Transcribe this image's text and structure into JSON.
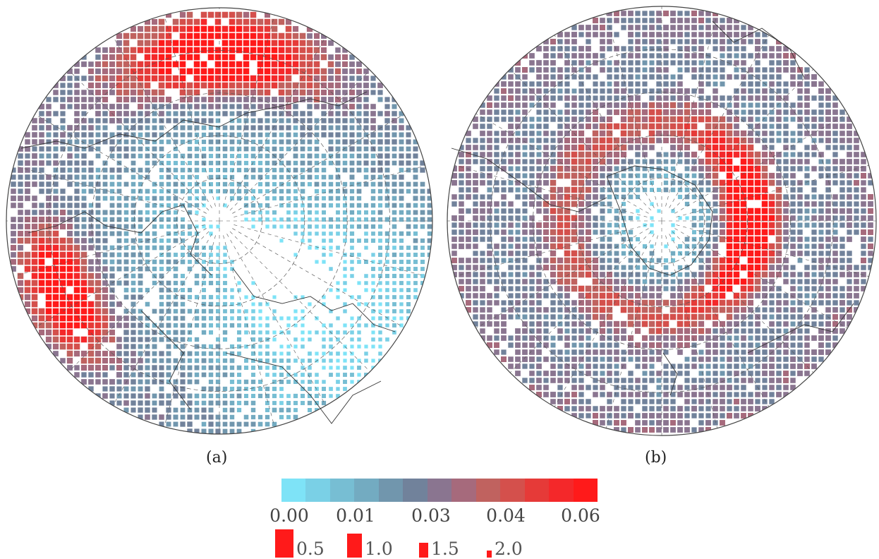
{
  "panels": [
    {
      "id": "a",
      "label": "(a)"
    },
    {
      "id": "b",
      "label": "(b)"
    }
  ],
  "colorbar": {
    "colors": [
      "#7ee3f7",
      "#7ad0e6",
      "#77bed3",
      "#73abc1",
      "#7196ad",
      "#71829b",
      "#8a7590",
      "#a66a7c",
      "#c0625f",
      "#d4504c",
      "#e63a38",
      "#f4282a",
      "#ff1a1a"
    ],
    "tick_labels": [
      "0.00",
      "0.01",
      "0.03",
      "0.04",
      "0.06"
    ]
  },
  "size_legend": [
    {
      "label": "0.5",
      "relative_size": 1.0
    },
    {
      "label": "1.0",
      "relative_size": 0.82
    },
    {
      "label": "1.5",
      "relative_size": 0.52
    },
    {
      "label": "2.0",
      "relative_size": 0.28
    }
  ],
  "map_style": {
    "coastline_color": "#333333",
    "grid_color": "#555555",
    "grid": true,
    "projection": "polar stereographic"
  }
}
